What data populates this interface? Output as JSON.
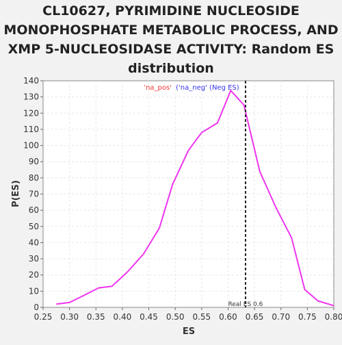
{
  "chart_data": {
    "type": "line",
    "title_lines": [
      "CL10627, PYRIMIDINE NUCLEOSIDE",
      "MONOPHOSPHATE METABOLIC PROCESS, AND",
      "XMP 5-NUCLEOSIDASE ACTIVITY: Random ES",
      "distribution"
    ],
    "xlabel": "ES",
    "ylabel": "P(ES)",
    "xlim": [
      0.25,
      0.8
    ],
    "ylim": [
      0,
      140
    ],
    "x_ticks": [
      "0.25",
      "0.30",
      "0.35",
      "0.40",
      "0.45",
      "0.50",
      "0.55",
      "0.60",
      "0.65",
      "0.70",
      "0.75",
      "0.80"
    ],
    "y_ticks": [
      "0",
      "10",
      "20",
      "30",
      "40",
      "50",
      "60",
      "70",
      "80",
      "90",
      "100",
      "110",
      "120",
      "130",
      "140"
    ],
    "grid": true,
    "series": [
      {
        "color": "#ee33ee",
        "x": [
          0.275,
          0.3,
          0.325,
          0.355,
          0.38,
          0.41,
          0.44,
          0.47,
          0.495,
          0.525,
          0.55,
          0.58,
          0.605,
          0.63,
          0.66,
          0.69,
          0.72,
          0.745,
          0.77,
          0.8
        ],
        "y": [
          2,
          3,
          7,
          12,
          13,
          22,
          33,
          49,
          76,
          97,
          108,
          114,
          134,
          125,
          84,
          62,
          43,
          11,
          4,
          1
        ]
      }
    ],
    "real_es": {
      "value": 0.633,
      "label": "Real ES 0.6"
    },
    "legend": {
      "position": "top-center",
      "pos_text": "'na_pos'",
      "pos_color": "#ee3333",
      "neg_text": "('na_neg' (Neg ES)",
      "neg_color": "#3333ee"
    }
  }
}
